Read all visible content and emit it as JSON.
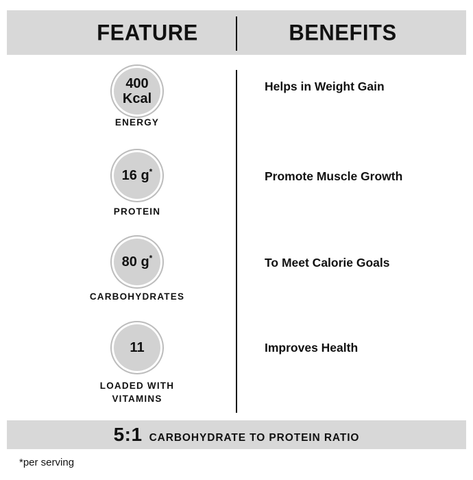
{
  "header": {
    "feature": "FEATURE",
    "benefits": "BENEFITS"
  },
  "rows": [
    {
      "circle_line1": "400",
      "circle_line2": "Kcal",
      "circle_sup": "",
      "label": "ENERGY",
      "benefit": "Helps in Weight Gain"
    },
    {
      "circle_line1": "16 g",
      "circle_line2": "",
      "circle_sup": "*",
      "label": "PROTEIN",
      "benefit": "Promote Muscle Growth"
    },
    {
      "circle_line1": "80 g",
      "circle_line2": "",
      "circle_sup": "*",
      "label": "CARBOHYDRATES",
      "benefit": "To Meet Calorie Goals"
    },
    {
      "circle_line1": "11",
      "circle_line2": "",
      "circle_sup": "",
      "label": "LOADED WITH VITAMINS",
      "benefit": "Improves Health"
    }
  ],
  "ratio_bar": {
    "value": "5:1",
    "label": "CARBOHYDRATE TO PROTEIN RATIO"
  },
  "footnote": "*per serving",
  "colors": {
    "bar_bg": "#d8d8d8",
    "circle_fill": "#d2d2d2",
    "circle_ring": "#bcbcbc",
    "divider": "#111111",
    "text": "#111111"
  }
}
